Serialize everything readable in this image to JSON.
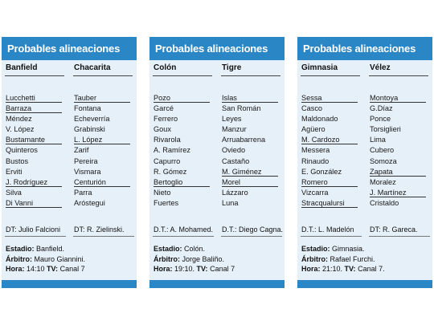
{
  "panels": [
    {
      "title": "Probables alineaciones",
      "home": {
        "team": "Banfield",
        "players": [
          "Lucchetti",
          "Barraza",
          "Méndez",
          "V. López",
          "Bustamante",
          "Quinteros",
          "Bustos",
          "Erviti",
          "J. Rodríguez",
          "Silva",
          "Di Vanni"
        ],
        "dt": "DT: Julio Falcioni"
      },
      "away": {
        "team": "Chacarita",
        "players": [
          "Tauber",
          "Fontana",
          "Echeverría",
          "Grabinski",
          "L. López",
          "Zarif",
          "Pereira",
          "Vismara",
          "Centurión",
          "Parra",
          "Aróstegui"
        ],
        "dt": "DT: R. Zielinski."
      },
      "estadio_label": "Estadio:",
      "estadio_value": " Banfield.",
      "arbitro_label": "Árbitro:",
      "arbitro_value": " Mauro Giannini.",
      "hora_label": "Hora:",
      "hora_value": " 14:10 ",
      "tv_label": "TV:",
      "tv_value": " Canal 7"
    },
    {
      "title": "Probables alineaciones",
      "home": {
        "team": "Colón",
        "players": [
          "Pozo",
          "Garcé",
          "Ferrero",
          "Goux",
          "Rivarola",
          "A. Ramírez",
          "Capurro",
          "R. Gómez",
          "Bertoglio",
          "Nieto",
          "Fuertes"
        ],
        "dt": "D.T.: A. Mohamed."
      },
      "away": {
        "team": "Tigre",
        "players": [
          "Islas",
          "San Román",
          "Leyes",
          "Manzur",
          "Arruabarrena",
          "Oviedo",
          "Castaño",
          "M. Giménez",
          "Morel",
          "Lázzaro",
          "Luna"
        ],
        "dt": "D.T.: Diego Cagna."
      },
      "estadio_label": "Estadio:",
      "estadio_value": " Colón.",
      "arbitro_label": "Árbitro:",
      "arbitro_value": " Jorge Baliño.",
      "hora_label": "Hora:",
      "hora_value": " 19:10. ",
      "tv_label": "TV:",
      "tv_value": " Canal 7"
    },
    {
      "title": "Probables alineaciones",
      "home": {
        "team": "Gimnasia",
        "players": [
          "Sessa",
          "Casco",
          "Maldonado",
          "Agüero",
          "M. Cardozo",
          "Messera",
          "Rinaudo",
          "E. González",
          "Romero",
          "Vizcarra",
          "Stracqualursi"
        ],
        "dt": "D.T.: L. Madelón"
      },
      "away": {
        "team": "Vélez",
        "players": [
          "Montoya",
          "G.Díaz",
          "Ponce",
          "Torsiglieri",
          "Lima",
          "Cubero",
          "Somoza",
          "Zapata",
          "Moralez",
          "J. Martínez",
          "Cristaldo"
        ],
        "dt": "DT: R. Gareca."
      },
      "estadio_label": "Estadio:",
      "estadio_value": " Gimnasia.",
      "arbitro_label": "Árbitro:",
      "arbitro_value": " Rafael Furchi.",
      "hora_label": "Hora:",
      "hora_value": " 21:10. ",
      "tv_label": "TV:",
      "tv_value": " Canal 7."
    }
  ],
  "colors": {
    "header": "#2a86c5",
    "body": "#e6f0f8"
  }
}
